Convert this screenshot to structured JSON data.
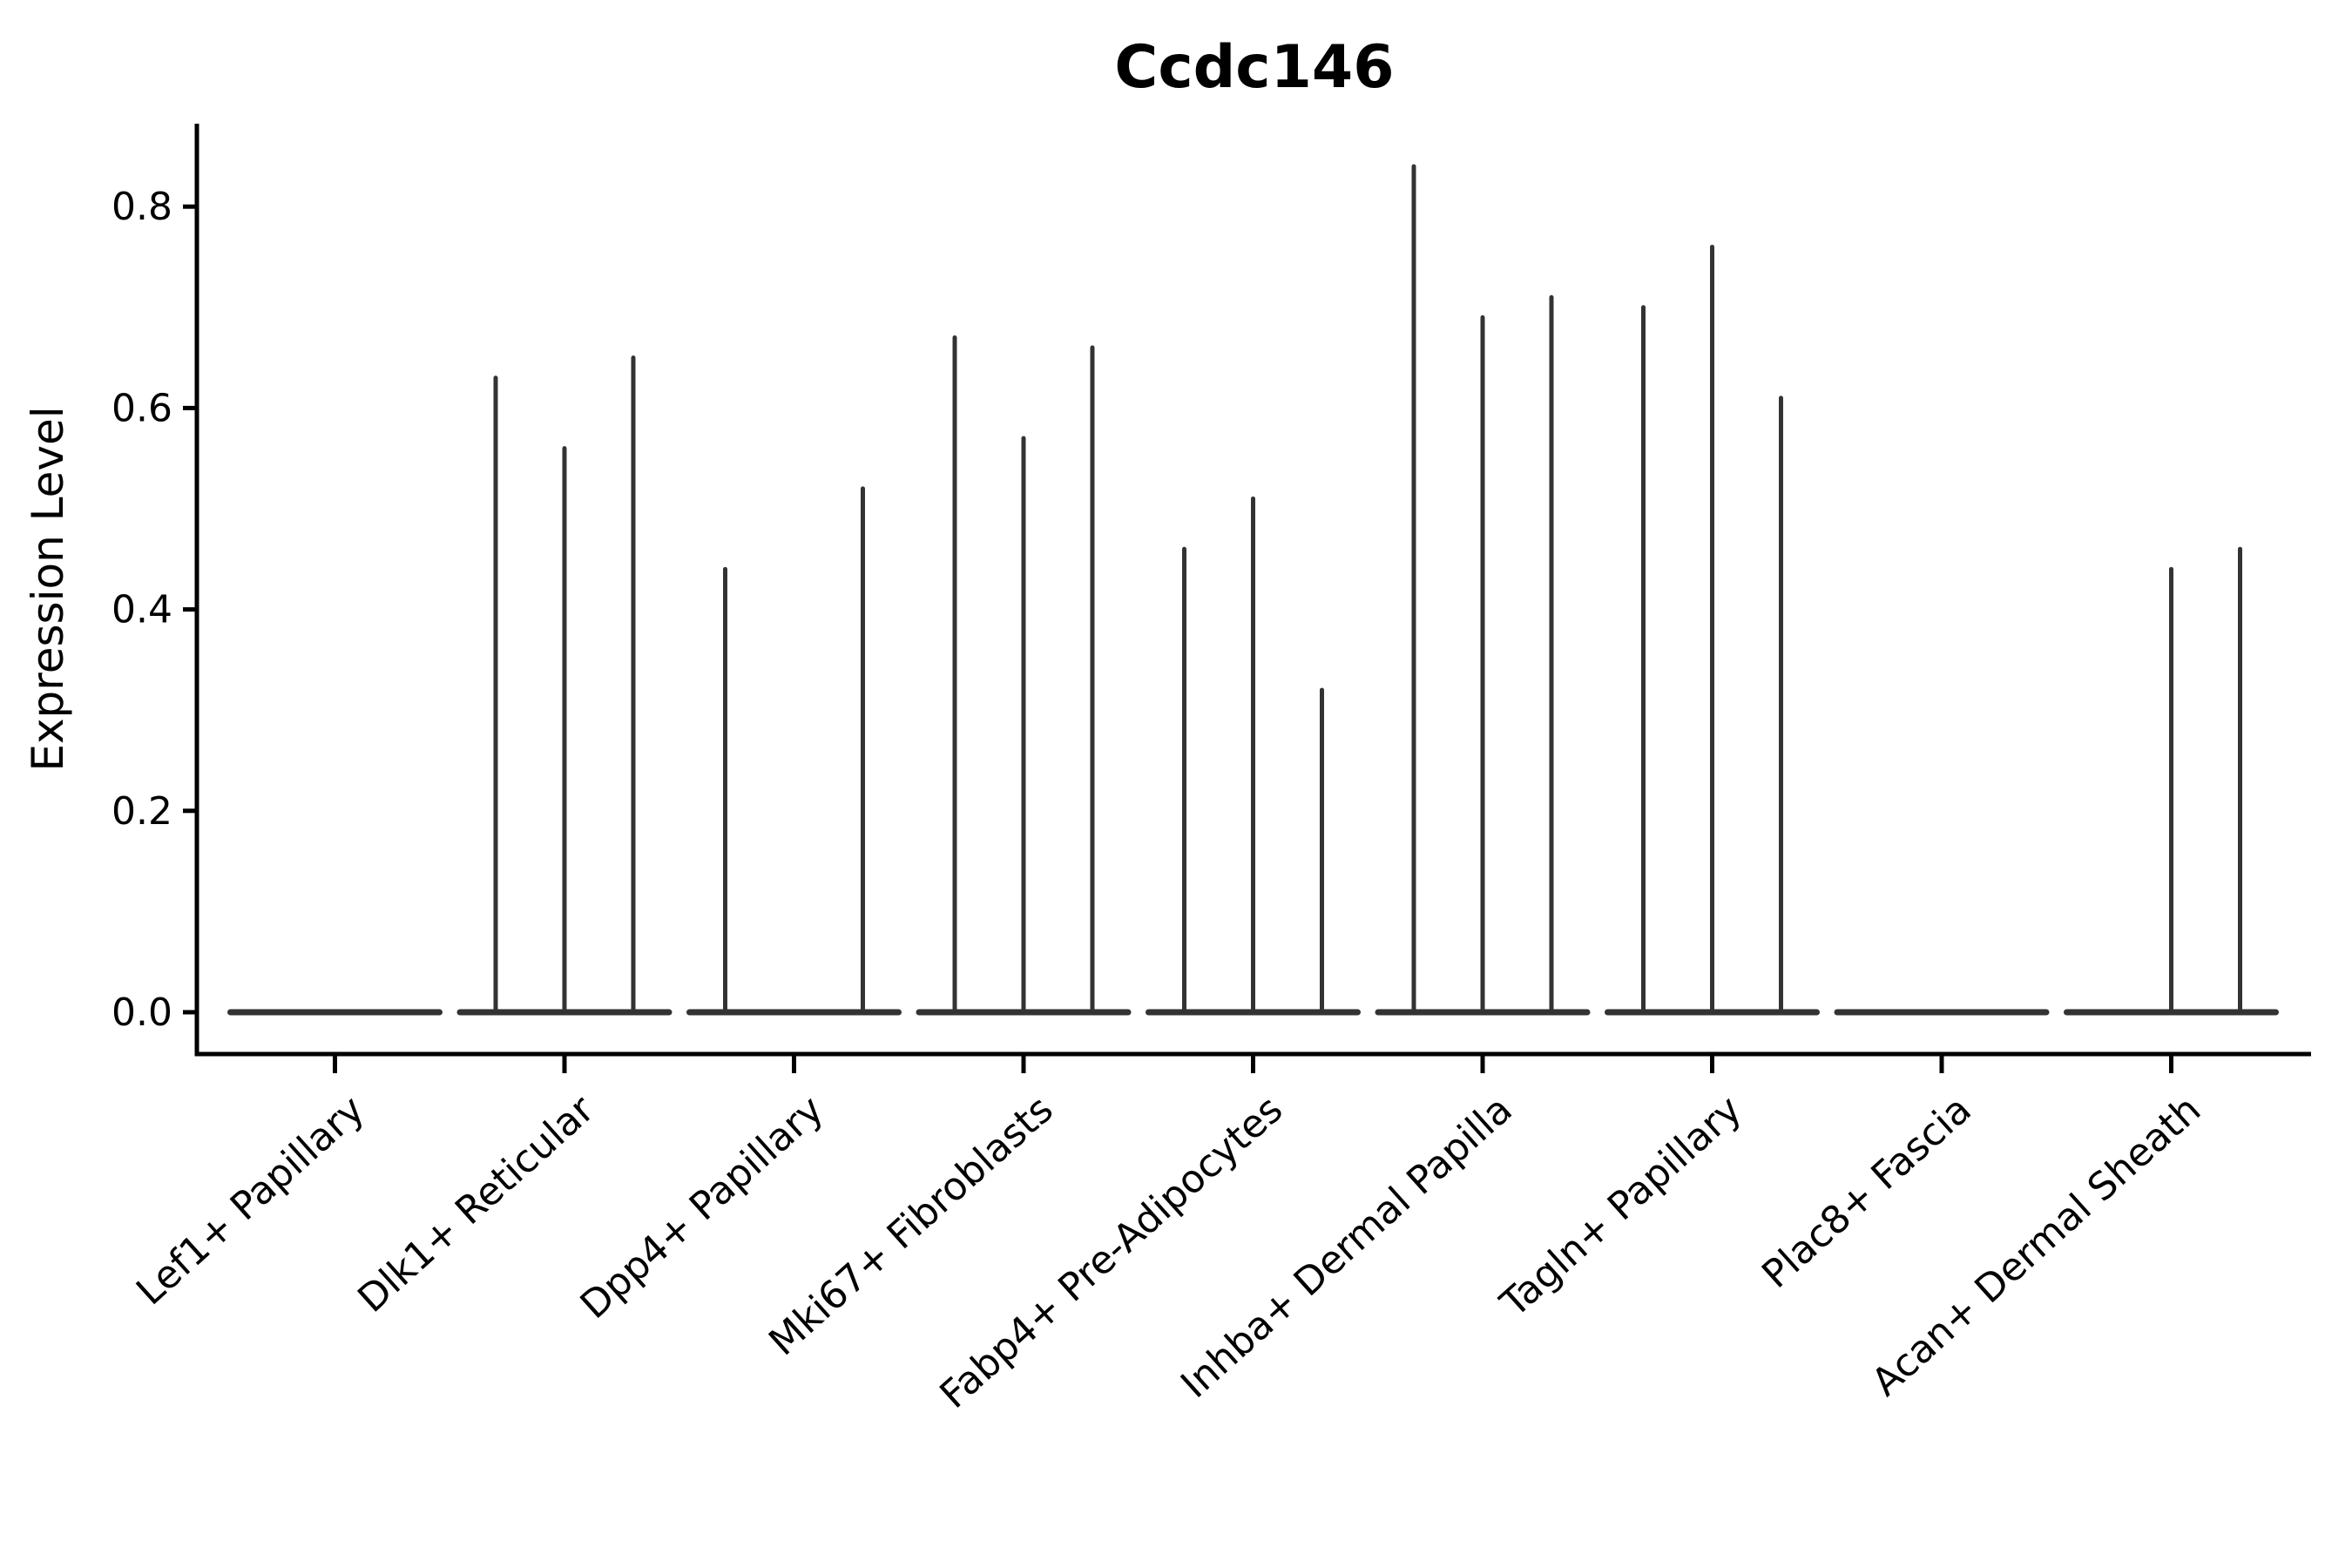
{
  "chart_data": {
    "type": "violin",
    "title": "Ccdc146",
    "xlabel": "",
    "ylabel": "Expression Level",
    "ylim": [
      0,
      0.88
    ],
    "ytick_labels": [
      "0.0",
      "0.2",
      "0.4",
      "0.6",
      "0.8"
    ],
    "grid": false,
    "legend": null,
    "violins_per_category": 3,
    "colors": {
      "violin": "#333333",
      "axis": "#000000",
      "text": "#000000",
      "background": "#ffffff"
    },
    "categories": [
      "Lef1+ Papillary",
      "Dlk1+ Reticular",
      "Dpp4+ Papillary",
      "Mki67+ Fibroblasts",
      "Fabp4+ Pre-Adipocytes",
      "Inhba+ Dermal Papilla",
      "Tagln+ Papillary",
      "Plac8+ Fascia",
      "Acan+ Dermal Sheath"
    ],
    "series": [
      {
        "category": "Lef1+ Papillary",
        "violin_max_expression": [
          0,
          0,
          0
        ]
      },
      {
        "category": "Dlk1+ Reticular",
        "violin_max_expression": [
          0.63,
          0.56,
          0.65
        ]
      },
      {
        "category": "Dpp4+ Papillary",
        "violin_max_expression": [
          0.44,
          0,
          0.52
        ]
      },
      {
        "category": "Mki67+ Fibroblasts",
        "violin_max_expression": [
          0.67,
          0.57,
          0.66
        ]
      },
      {
        "category": "Fabp4+ Pre-Adipocytes",
        "violin_max_expression": [
          0.46,
          0.51,
          0.32
        ]
      },
      {
        "category": "Inhba+ Dermal Papilla",
        "violin_max_expression": [
          0.84,
          0.69,
          0.71
        ]
      },
      {
        "category": "Tagln+ Papillary",
        "violin_max_expression": [
          0.7,
          0.76,
          0.61
        ]
      },
      {
        "category": "Plac8+ Fascia",
        "violin_max_expression": [
          0,
          0,
          0
        ]
      },
      {
        "category": "Acan+ Dermal Sheath",
        "violin_max_expression": [
          0,
          0.44,
          0.46
        ]
      }
    ]
  }
}
